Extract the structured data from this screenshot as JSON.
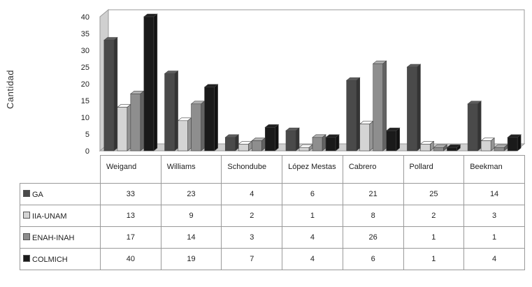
{
  "chart_data": {
    "type": "bar",
    "title": "",
    "xlabel": "",
    "ylabel": "Cantidad",
    "ylim": [
      0,
      40
    ],
    "yticks": [
      0,
      5,
      10,
      15,
      20,
      25,
      30,
      35,
      40
    ],
    "categories": [
      "Weigand",
      "Williams",
      "Schondube",
      "López Mestas",
      "Cabrero",
      "Pollard",
      "Beekman"
    ],
    "series": [
      {
        "name": "GA",
        "values": [
          33,
          23,
          4,
          6,
          21,
          25,
          14
        ],
        "color": "#4a4a4a"
      },
      {
        "name": "IIA-UNAM",
        "values": [
          13,
          9,
          2,
          1,
          8,
          2,
          3
        ],
        "color": "#d4d4d4"
      },
      {
        "name": "ENAH-INAH",
        "values": [
          17,
          14,
          3,
          4,
          26,
          1,
          1
        ],
        "color": "#8e8e8e"
      },
      {
        "name": "COLMICH",
        "values": [
          40,
          19,
          7,
          4,
          6,
          1,
          4
        ],
        "color": "#1a1a1a"
      }
    ],
    "grid": false,
    "legend": "table-below",
    "style": "3d"
  }
}
